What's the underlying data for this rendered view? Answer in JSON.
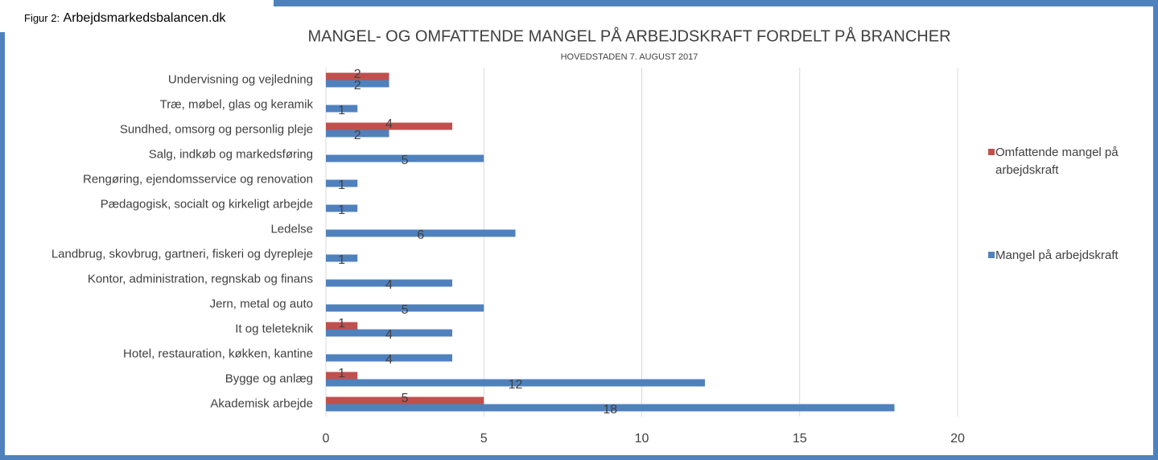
{
  "figure_label": {
    "prefix": "Figur 2:",
    "source": "Arbejdsmarkedsbalancen.dk"
  },
  "chart_data": {
    "type": "hbar",
    "title": "MANGEL- OG OMFATTENDE MANGEL PÅ ARBEJDSKRAFT FORDELT PÅ BRANCHER",
    "subtitle": "HOVEDSTADEN 7. AUGUST 2017",
    "categories": [
      "Undervisning og vejledning",
      "Træ, møbel, glas og keramik",
      "Sundhed, omsorg og personlig pleje",
      "Salg, indkøb og markedsføring",
      "Rengøring, ejendomsservice og renovation",
      "Pædagogisk, socialt og kirkeligt arbejde",
      "Ledelse",
      "Landbrug, skovbrug, gartneri, fiskeri og dyrepleje",
      "Kontor, administration, regnskab og finans",
      "Jern, metal og auto",
      "It og teleteknik",
      "Hotel, restauration, køkken, kantine",
      "Bygge og anlæg",
      "Akademisk arbejde"
    ],
    "series": [
      {
        "name": "Omfattende mangel på arbejdskraft",
        "color": "#c0504d",
        "values": [
          2,
          null,
          4,
          null,
          null,
          null,
          null,
          null,
          null,
          null,
          1,
          null,
          1,
          5
        ]
      },
      {
        "name": "Mangel på arbejdskraft",
        "color": "#4f81bd",
        "values": [
          2,
          1,
          2,
          5,
          1,
          1,
          6,
          1,
          4,
          5,
          4,
          4,
          12,
          18
        ]
      }
    ],
    "xlim": [
      0,
      20
    ],
    "xticks": [
      0,
      5,
      10,
      15,
      20
    ],
    "grid": true,
    "legend": "right"
  }
}
